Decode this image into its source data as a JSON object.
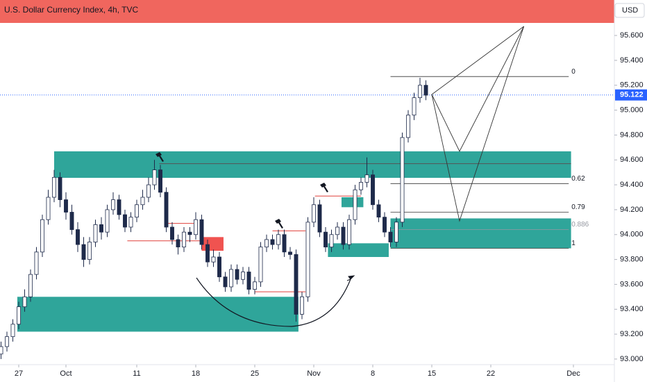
{
  "chart_data": {
    "type": "candlestick",
    "title": "U.S. Dollar Currency Index, 4h, TVC",
    "currency": "USD",
    "up_color": "#ffffff",
    "down_color": "#1e2a4a",
    "outline_color": "#1e2a4a",
    "xlim": [
      -1.588,
      50.47
    ],
    "ylim": [
      92.955,
      95.885
    ],
    "xticks": [
      {
        "value": 0,
        "label": "27"
      },
      {
        "value": 4,
        "label": "Oct"
      },
      {
        "value": 10,
        "label": "11"
      },
      {
        "value": 15,
        "label": "18"
      },
      {
        "value": 20,
        "label": "25"
      },
      {
        "value": 25,
        "label": "Nov"
      },
      {
        "value": 30,
        "label": "8"
      },
      {
        "value": 35,
        "label": "15"
      },
      {
        "value": 40,
        "label": "22"
      },
      {
        "value": 47,
        "label": "Dec"
      }
    ],
    "yticks": [
      {
        "value": 93.0,
        "label": "93.000"
      },
      {
        "value": 93.2,
        "label": "93.200"
      },
      {
        "value": 93.4,
        "label": "93.400"
      },
      {
        "value": 93.6,
        "label": "93.600"
      },
      {
        "value": 93.8,
        "label": "93.800"
      },
      {
        "value": 94.0,
        "label": "94.000"
      },
      {
        "value": 94.2,
        "label": "94.200"
      },
      {
        "value": 94.4,
        "label": "94.400"
      },
      {
        "value": 94.6,
        "label": "94.600"
      },
      {
        "value": 94.8,
        "label": "94.800"
      },
      {
        "value": 95.0,
        "label": "95.000"
      },
      {
        "value": 95.2,
        "label": "95.200"
      },
      {
        "value": 95.4,
        "label": "95.400"
      },
      {
        "value": 95.6,
        "label": "95.600"
      }
    ],
    "last_price": 95.122,
    "last_price_color": "#2962ff",
    "x": [
      -1.5,
      -1,
      -0.5,
      0,
      0.5,
      1,
      1.5,
      2,
      2.5,
      3,
      3.5,
      4,
      4.5,
      5,
      5.5,
      6,
      6.5,
      7,
      7.5,
      8,
      8.5,
      9,
      9.5,
      10,
      10.5,
      11,
      11.5,
      12,
      12.5,
      13,
      13.5,
      14,
      14.5,
      15,
      15.5,
      16,
      16.5,
      17,
      17.5,
      18,
      18.5,
      19,
      19.5,
      20,
      20.5,
      21,
      21.5,
      22,
      22.5,
      23,
      23.5,
      24,
      24.5,
      25,
      25.5,
      26,
      26.5,
      27,
      27.5,
      28,
      28.5,
      29,
      29.5,
      30,
      30.5,
      31,
      31.5,
      32,
      32.5,
      33,
      33.5,
      34,
      34.5
    ],
    "open": [
      93.04,
      93.1,
      93.18,
      93.28,
      93.42,
      93.5,
      93.68,
      93.86,
      94.12,
      94.3,
      94.46,
      94.28,
      94.18,
      94.04,
      93.92,
      93.8,
      93.94,
      94.08,
      94.02,
      94.2,
      94.28,
      94.16,
      94.06,
      94.14,
      94.24,
      94.3,
      94.4,
      94.52,
      94.34,
      94.06,
      93.96,
      93.9,
      94.02,
      94.0,
      94.12,
      93.92,
      93.78,
      93.82,
      93.66,
      93.58,
      93.72,
      93.64,
      93.7,
      93.56,
      93.62,
      93.9,
      93.96,
      93.92,
      94.0,
      93.86,
      93.84,
      93.36,
      93.5,
      94.1,
      94.24,
      94.02,
      93.9,
      94.0,
      94.06,
      93.92,
      94.12,
      94.36,
      94.42,
      94.48,
      94.24,
      94.14,
      94.02,
      93.94,
      94.1,
      94.78,
      94.96,
      95.1,
      95.2
    ],
    "high": [
      93.14,
      93.22,
      93.32,
      93.46,
      93.56,
      93.72,
      93.9,
      94.16,
      94.36,
      94.52,
      94.5,
      94.34,
      94.24,
      94.1,
      93.98,
      93.98,
      94.12,
      94.14,
      94.24,
      94.34,
      94.32,
      94.2,
      94.18,
      94.28,
      94.36,
      94.46,
      94.6,
      94.56,
      94.38,
      94.1,
      94.0,
      94.06,
      94.06,
      94.18,
      94.16,
      93.96,
      93.88,
      93.86,
      93.7,
      93.76,
      93.76,
      93.74,
      93.74,
      93.66,
      93.94,
      94.0,
      94.0,
      94.04,
      94.04,
      93.9,
      93.88,
      93.54,
      94.14,
      94.3,
      94.28,
      94.06,
      94.04,
      94.1,
      94.1,
      94.16,
      94.4,
      94.46,
      94.62,
      94.52,
      94.28,
      94.18,
      94.06,
      94.14,
      94.82,
      95.0,
      95.14,
      95.26,
      95.24
    ],
    "low": [
      93.0,
      93.06,
      93.14,
      93.24,
      93.38,
      93.46,
      93.64,
      93.82,
      94.08,
      94.26,
      94.22,
      94.12,
      94.0,
      93.86,
      93.74,
      93.76,
      93.9,
      93.96,
      93.98,
      94.16,
      94.12,
      94.02,
      94.02,
      94.1,
      94.2,
      94.26,
      94.36,
      94.3,
      94.02,
      93.92,
      93.84,
      93.86,
      93.94,
      93.96,
      93.88,
      93.74,
      93.74,
      93.62,
      93.54,
      93.54,
      93.6,
      93.6,
      93.52,
      93.52,
      93.58,
      93.86,
      93.88,
      93.88,
      93.82,
      93.8,
      93.3,
      93.32,
      93.46,
      94.06,
      93.98,
      93.86,
      93.86,
      93.96,
      93.88,
      93.88,
      94.08,
      94.32,
      94.38,
      94.2,
      94.1,
      93.98,
      93.9,
      93.9,
      94.06,
      94.74,
      94.92,
      95.06,
      95.08
    ],
    "close": [
      93.1,
      93.18,
      93.28,
      93.42,
      93.5,
      93.68,
      93.86,
      94.12,
      94.3,
      94.46,
      94.28,
      94.18,
      94.04,
      93.92,
      93.8,
      93.94,
      94.08,
      94.02,
      94.2,
      94.28,
      94.16,
      94.06,
      94.14,
      94.24,
      94.3,
      94.4,
      94.52,
      94.34,
      94.06,
      93.96,
      93.9,
      94.02,
      94.0,
      94.12,
      93.92,
      93.78,
      93.82,
      93.66,
      93.58,
      93.72,
      93.64,
      93.7,
      93.56,
      93.62,
      93.9,
      93.96,
      93.92,
      94.0,
      93.86,
      93.84,
      93.36,
      93.5,
      94.1,
      94.24,
      94.02,
      93.9,
      94.0,
      94.06,
      93.92,
      94.12,
      94.36,
      94.42,
      94.48,
      94.24,
      94.14,
      94.02,
      93.94,
      94.1,
      94.78,
      94.96,
      95.1,
      95.2,
      95.12
    ],
    "zones": [
      {
        "x": [
          3.0,
          46.8
        ],
        "y": [
          94.456,
          94.669
        ],
        "color": "#2fa59a"
      },
      {
        "x": [
          -0.12,
          23.7
        ],
        "y": [
          93.22,
          93.5
        ],
        "color": "#2fa59a"
      },
      {
        "x": [
          31.5,
          46.8
        ],
        "y": [
          93.89,
          94.13
        ],
        "color": "#2fa59a"
      },
      {
        "x": [
          26.2,
          31.35
        ],
        "y": [
          93.82,
          93.93
        ],
        "color": "#2fa59a"
      },
      {
        "x": [
          27.35,
          29.2
        ],
        "y": [
          94.22,
          94.3
        ],
        "color": "#2fa59a"
      },
      {
        "x": [
          15.5,
          17.35
        ],
        "y": [
          93.87,
          93.98
        ],
        "color": "#f05350"
      }
    ],
    "lines": [
      {
        "x": [
          11.9,
          46.8
        ],
        "y": 94.57,
        "color": "#555555"
      },
      {
        "x": [
          9.2,
          15.5
        ],
        "y": 93.95,
        "color": "#e0403c"
      },
      {
        "x": [
          12.5,
          15.0
        ],
        "y": 94.09,
        "color": "#e0403c"
      },
      {
        "x": [
          20.0,
          24.3
        ],
        "y": 93.54,
        "color": "#e0403c"
      },
      {
        "x": [
          21.5,
          24.3
        ],
        "y": 94.03,
        "color": "#e0403c"
      },
      {
        "x": [
          25.1,
          29.0
        ],
        "y": 94.31,
        "color": "#e0403c"
      }
    ],
    "fib_x": [
      31.5,
      46.6
    ],
    "fib_levels": [
      {
        "value": 95.27,
        "label": "0"
      },
      {
        "value": 94.41,
        "label": "0.62"
      },
      {
        "value": 94.18,
        "label": "0.79"
      },
      {
        "value": 94.04,
        "label": "0.886"
      },
      {
        "value": 93.89,
        "label": "1"
      }
    ],
    "projection": [
      {
        "x": [
          35.0,
          42.8
        ],
        "y": [
          95.126,
          95.673
        ]
      },
      {
        "x": [
          35.0,
          37.35,
          42.8
        ],
        "y": [
          95.126,
          94.669,
          95.673
        ]
      },
      {
        "x": [
          35.0,
          37.35,
          42.8
        ],
        "y": [
          95.126,
          94.11,
          95.673
        ]
      }
    ]
  }
}
